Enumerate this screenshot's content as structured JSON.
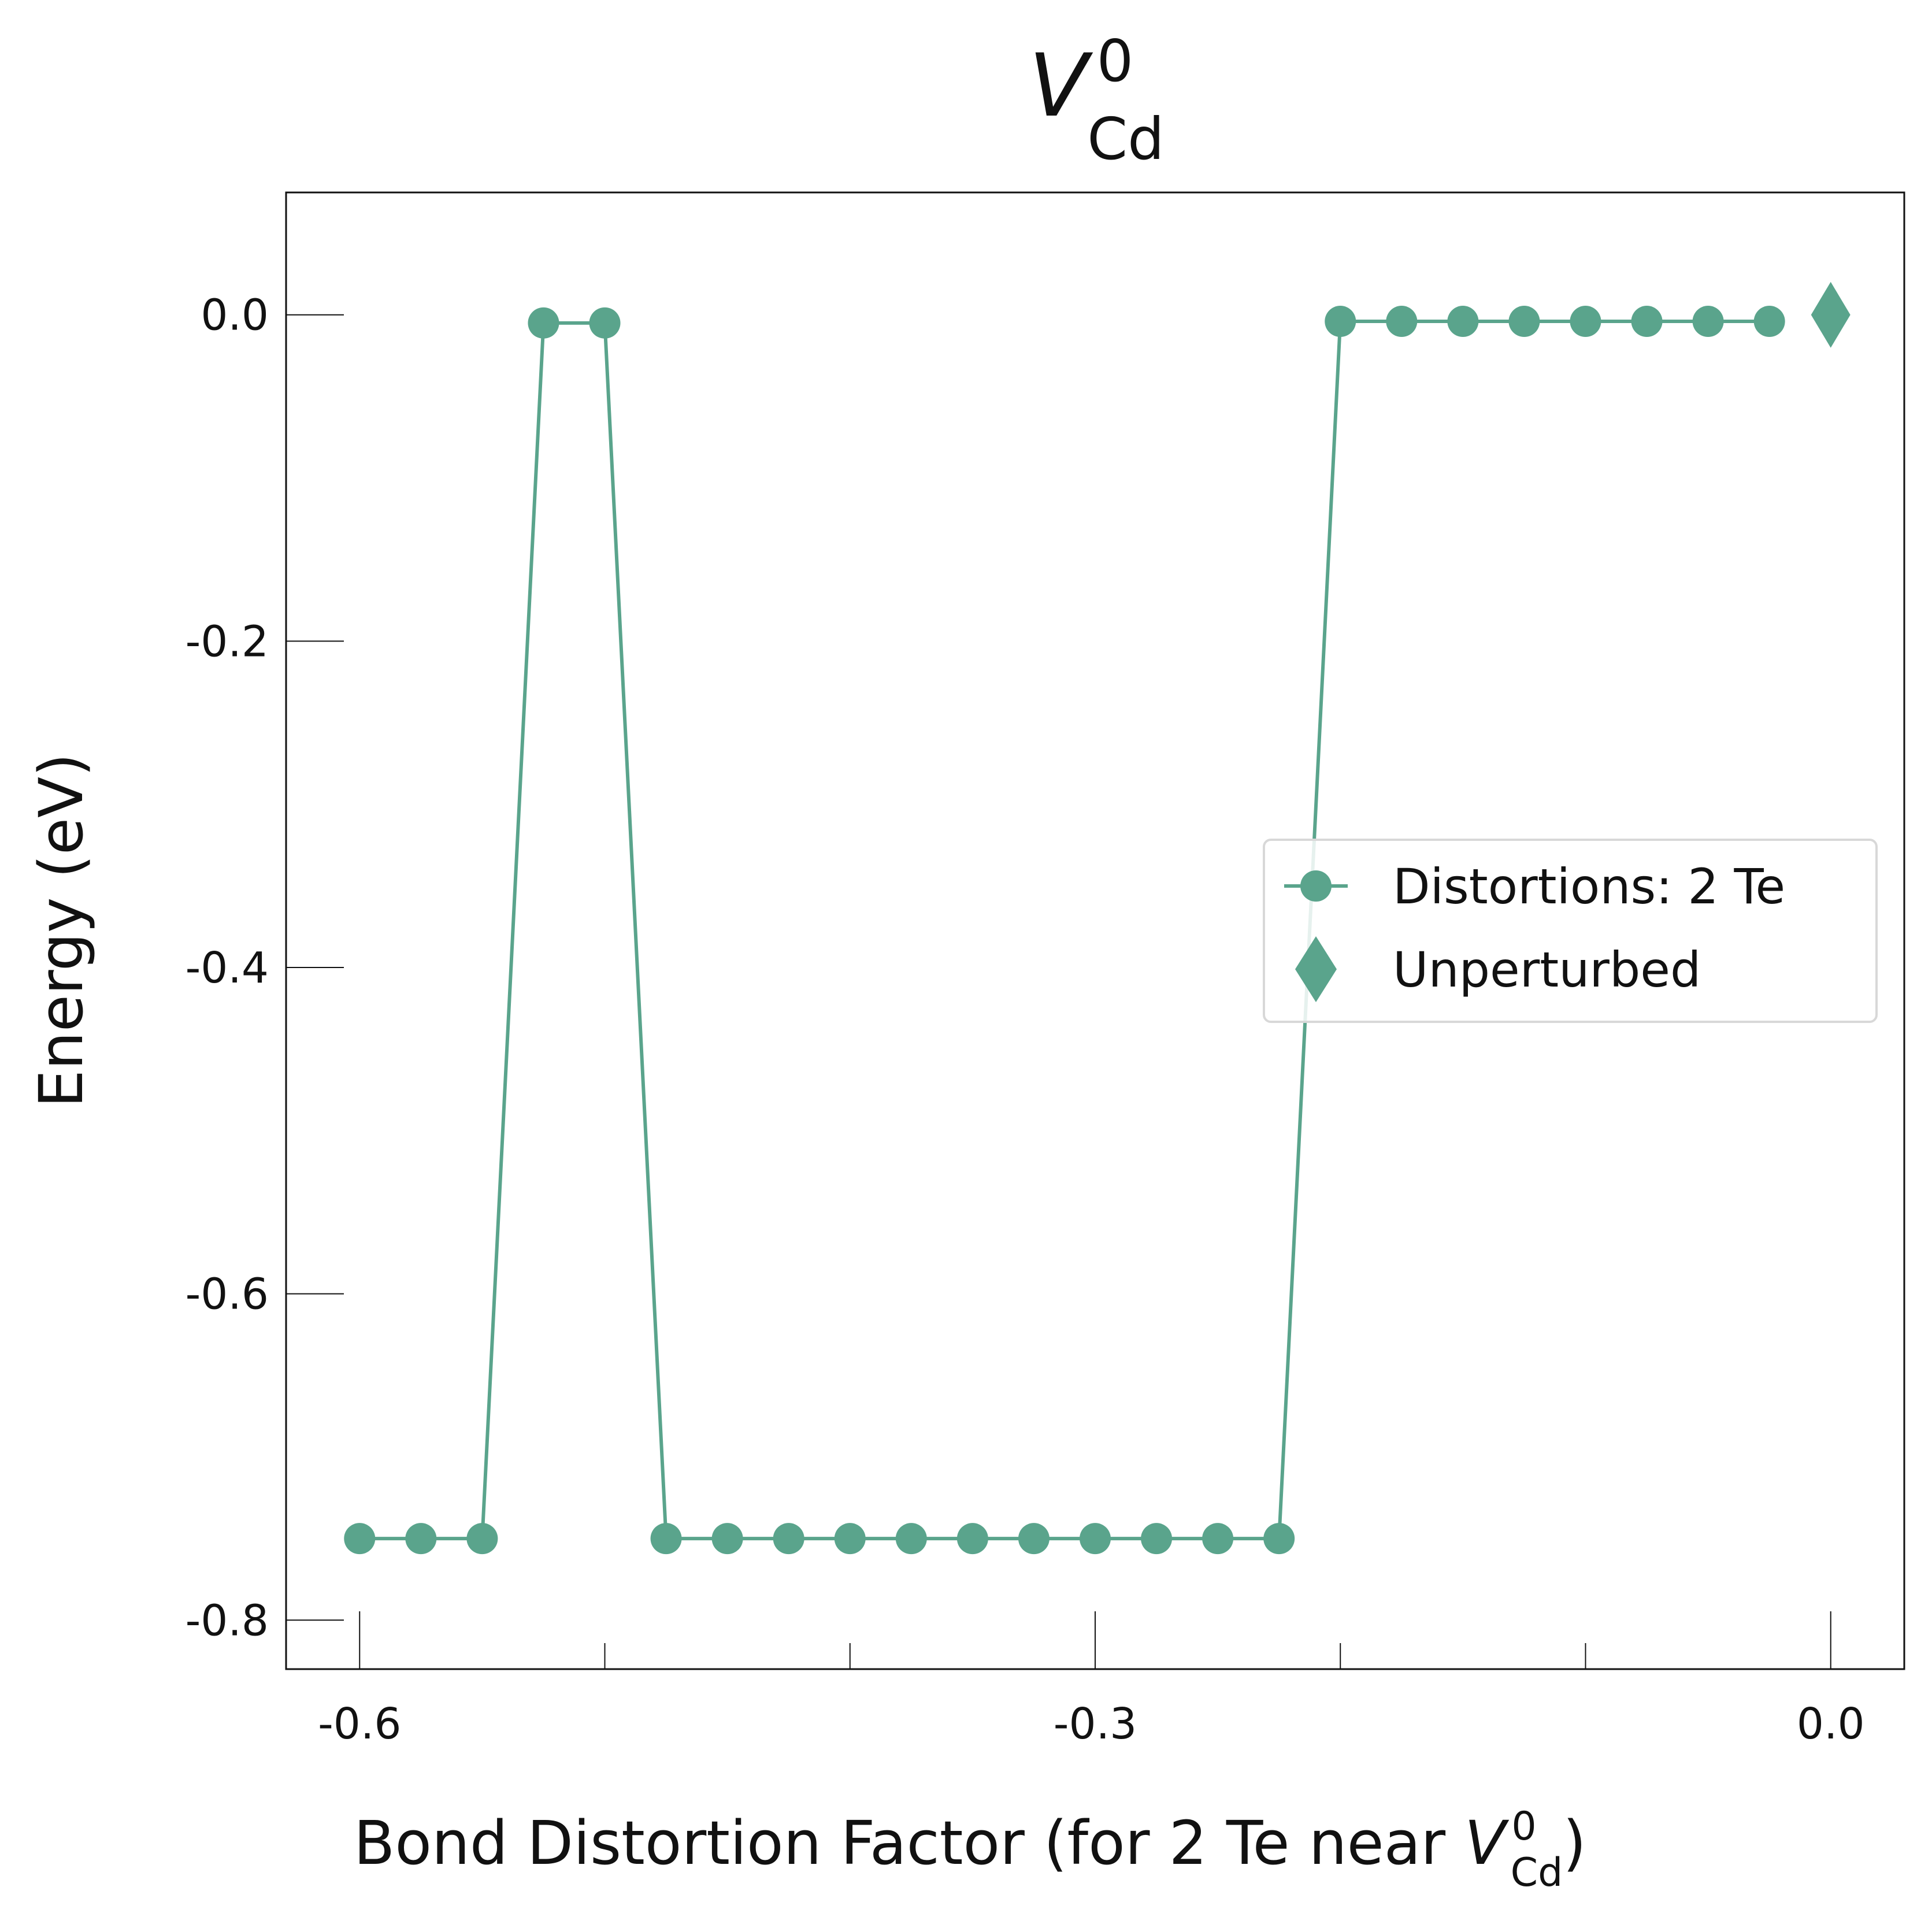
{
  "chart_data": {
    "type": "line",
    "title": {
      "symbol": "V",
      "superscript": "0",
      "subscript": "Cd"
    },
    "xlabel": {
      "text": "Bond Distortion Factor (for 2 Te near ",
      "symbol": "V",
      "superscript": "0",
      "subscript": "Cd",
      "closing": ")"
    },
    "ylabel": "Energy (eV)",
    "xlim": [
      -0.63,
      0.03
    ],
    "ylim": [
      -0.83,
      0.075
    ],
    "x_ticks": [
      {
        "value": -0.6,
        "label": "-0.6"
      },
      {
        "value": -0.5,
        "label": ""
      },
      {
        "value": -0.4,
        "label": ""
      },
      {
        "value": -0.3,
        "label": "-0.3"
      },
      {
        "value": -0.2,
        "label": ""
      },
      {
        "value": -0.1,
        "label": ""
      },
      {
        "value": 0.0,
        "label": "0.0"
      }
    ],
    "y_ticks": [
      {
        "value": 0.0,
        "label": "0.0"
      },
      {
        "value": -0.2,
        "label": "-0.2"
      },
      {
        "value": -0.4,
        "label": "-0.4"
      },
      {
        "value": -0.6,
        "label": "-0.6"
      },
      {
        "value": -0.8,
        "label": "-0.8"
      }
    ],
    "grid": false,
    "legend_position": "center-right",
    "series": [
      {
        "name": "Distortions: 2 Te",
        "marker": "circle",
        "color": "#5aa48c",
        "x": [
          -0.6,
          -0.575,
          -0.55,
          -0.525,
          -0.5,
          -0.475,
          -0.45,
          -0.425,
          -0.4,
          -0.375,
          -0.35,
          -0.325,
          -0.3,
          -0.275,
          -0.25,
          -0.225,
          -0.2,
          -0.175,
          -0.15,
          -0.125,
          -0.1,
          -0.075,
          -0.05,
          -0.025
        ],
        "y": [
          -0.75,
          -0.75,
          -0.75,
          -0.005,
          -0.005,
          -0.75,
          -0.75,
          -0.75,
          -0.75,
          -0.75,
          -0.75,
          -0.75,
          -0.75,
          -0.75,
          -0.75,
          -0.75,
          -0.004,
          -0.004,
          -0.004,
          -0.004,
          -0.004,
          -0.004,
          -0.004,
          -0.004
        ]
      },
      {
        "name": "Unperturbed",
        "marker": "diamond",
        "color": "#5aa48c",
        "x": [
          0.0
        ],
        "y": [
          0.0
        ]
      }
    ]
  }
}
